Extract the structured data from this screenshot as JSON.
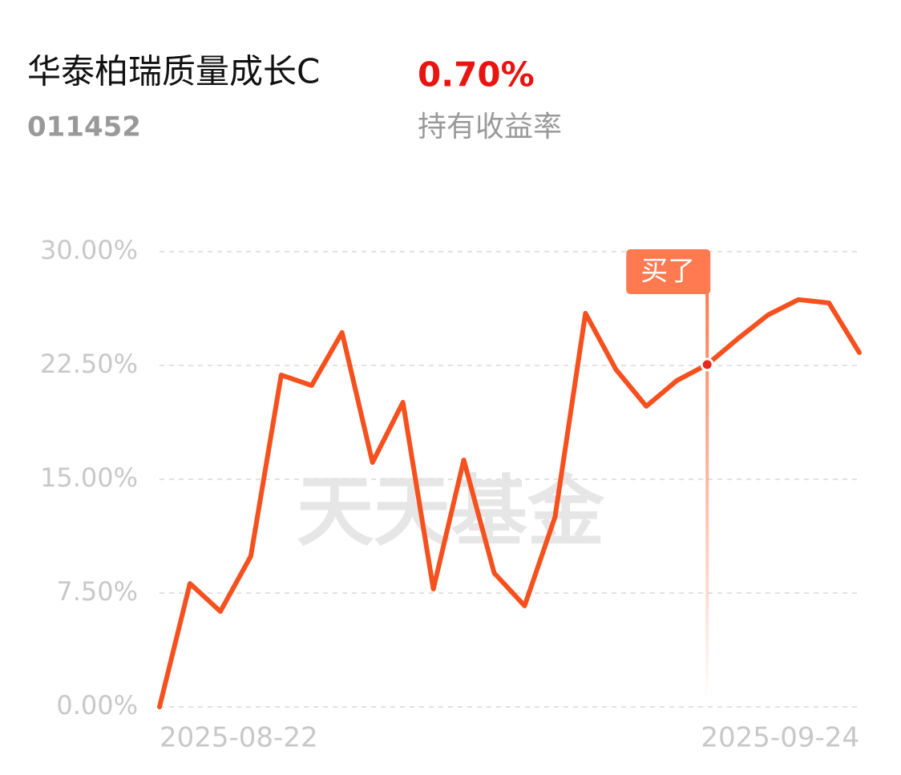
{
  "header": {
    "title": "华泰柏瑞质量成长C",
    "code": "011452",
    "return_value": "0.70%",
    "return_label": "持有收益率"
  },
  "chart_data": {
    "type": "line",
    "watermark": "天天基金",
    "categories": [
      "2025-08-22",
      null,
      null,
      null,
      null,
      null,
      null,
      null,
      null,
      null,
      null,
      null,
      null,
      null,
      null,
      null,
      null,
      null,
      null,
      null,
      null,
      null,
      null,
      "2025-09-24"
    ],
    "series": [
      {
        "name": "持有收益率",
        "color": "#f5501e",
        "values": [
          0,
          8.13,
          6.29,
          9.93,
          21.87,
          21.18,
          24.67,
          16.11,
          20.07,
          7.77,
          16.27,
          8.82,
          6.66,
          12.52,
          25.94,
          22.24,
          19.81,
          21.5,
          22.56,
          24.25,
          25.83,
          26.84,
          26.62,
          23.35
        ]
      }
    ],
    "ylim": [
      0,
      30
    ],
    "yticks": [
      {
        "value": 0,
        "label": "0.00%"
      },
      {
        "value": 7.5,
        "label": "7.50%"
      },
      {
        "value": 15,
        "label": "15.00%"
      },
      {
        "value": 22.5,
        "label": "22.50%"
      },
      {
        "value": 30,
        "label": "30.00%"
      }
    ],
    "grid": true,
    "annotations": [
      {
        "text": "买了",
        "index": 18,
        "color": "#ff7a50"
      }
    ]
  }
}
